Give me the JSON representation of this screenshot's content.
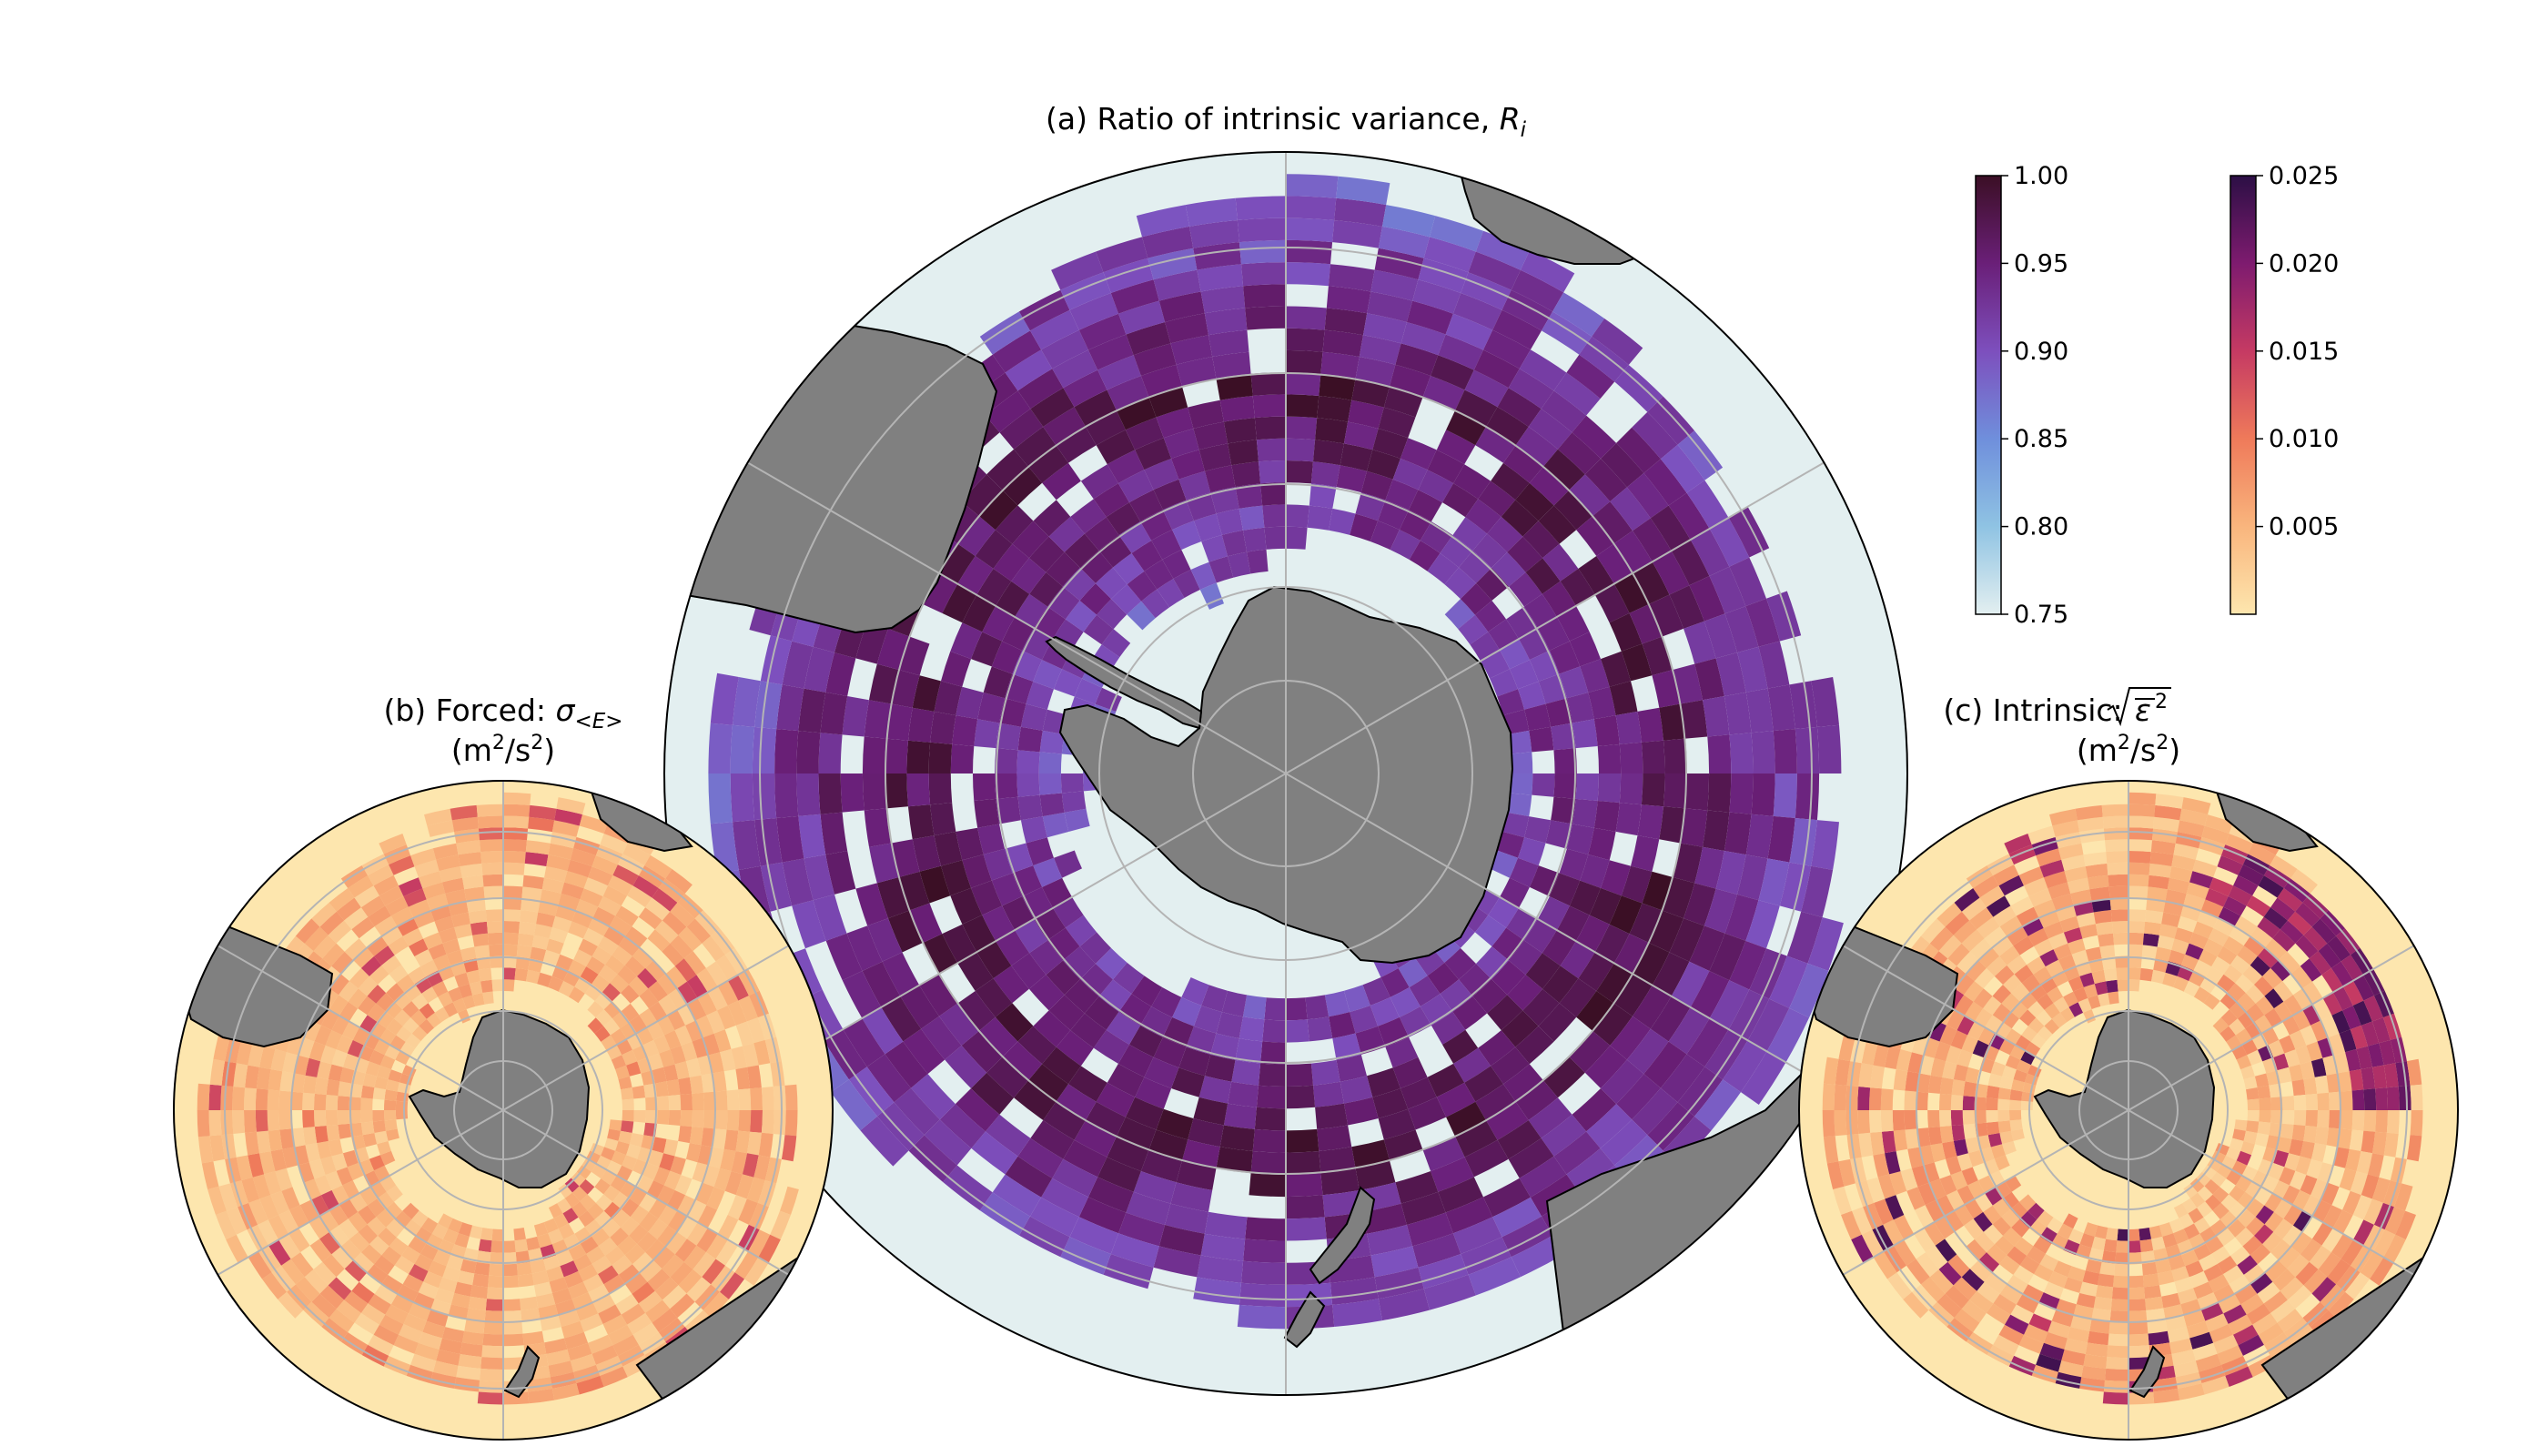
{
  "panels": {
    "a": {
      "title": "(a) Ratio of intrinsic variance, ",
      "title_symbol": "R",
      "title_sub": "i"
    },
    "b": {
      "title": "(b) Forced: ",
      "title_symbol": "σ",
      "title_sub": "<E>",
      "units_base": "(m",
      "units_exp": "2",
      "units_tail": "/s",
      "units_exp2": "2",
      "units_close": ")"
    },
    "c": {
      "title": "(c) Intrinsic: ",
      "title_symbol": "ε",
      "title_exp": "2",
      "units_base": "(m",
      "units_exp": "2",
      "units_tail": "/s",
      "units_exp2": "2",
      "units_close": ")"
    }
  },
  "colorbars": {
    "ratio": {
      "ticks": [
        "1.00",
        "0.95",
        "0.90",
        "0.85",
        "0.80",
        "0.75"
      ],
      "colormap": "ice-blue to purple to dark maroon",
      "range": [
        0.75,
        1.0
      ]
    },
    "variance": {
      "ticks": [
        "0.025",
        "0.020",
        "0.015",
        "0.010",
        "0.005"
      ],
      "colormap": "magma-like (pale yellow to dark purple)",
      "range": [
        0.0,
        0.025
      ]
    }
  },
  "colors": {
    "land": "#808080",
    "ocean_background": "#e3eff0",
    "grid_lines": "#b4b4b4"
  },
  "map": {
    "projection": "south polar stereographic",
    "gridlines": true,
    "continent": "Antarctica"
  }
}
